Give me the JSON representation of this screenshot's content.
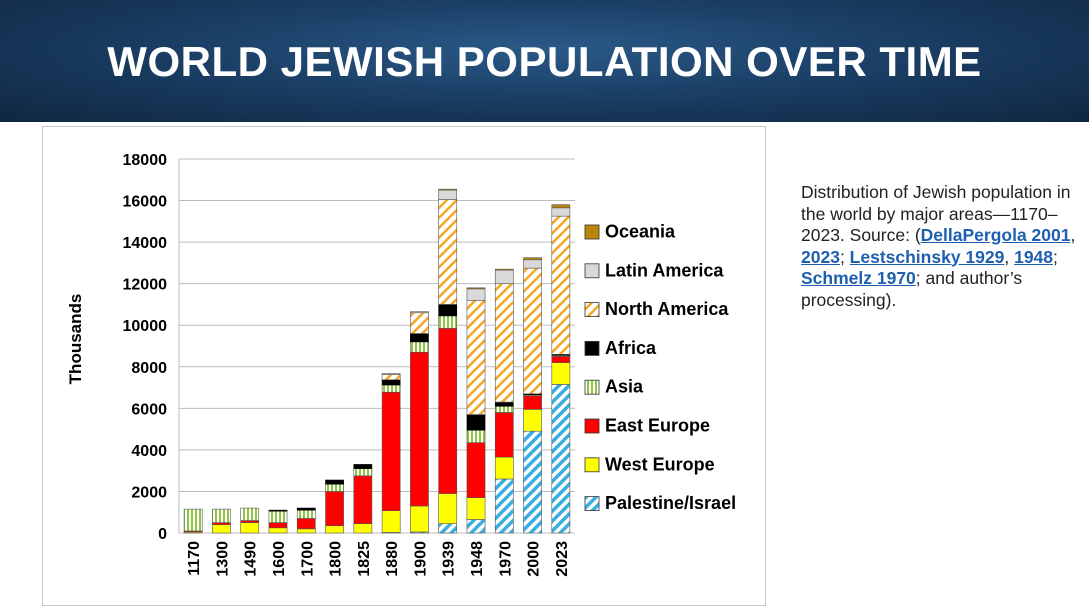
{
  "header": {
    "title": "WORLD JEWISH POPULATION OVER TIME"
  },
  "caption": {
    "line1": "Distribution of Jewish population in the world by major areas—1170–2023. Source: (",
    "link1": "DellaPergola 2001",
    "sep1": ", ",
    "link2": "2023",
    "sep2": "; ",
    "link3": "Lestschinsky 1929",
    "sep3": ", ",
    "link4": "1948",
    "sep4": "; ",
    "link5": "Schmelz 1970",
    "tail": "; and author’s processing)."
  },
  "chart_data": {
    "type": "bar",
    "stacked": true,
    "ylabel": "Thousands",
    "ylim": [
      0,
      18000
    ],
    "yticks": [
      0,
      2000,
      4000,
      6000,
      8000,
      10000,
      12000,
      14000,
      16000,
      18000
    ],
    "grid": true,
    "legend_position": "right",
    "categories": [
      "1170",
      "1300",
      "1490",
      "1600",
      "1700",
      "1800",
      "1825",
      "1880",
      "1900",
      "1939",
      "1948",
      "1970",
      "2000",
      "2023"
    ],
    "series": [
      {
        "name": "Palestine/Israel",
        "color": "#3aaee0",
        "pattern": "diag-blue",
        "values": [
          0,
          0,
          0,
          0,
          0,
          0,
          0,
          25,
          50,
          450,
          650,
          2600,
          4900,
          7150
        ]
      },
      {
        "name": "West Europe",
        "color": "#ffff00",
        "values": [
          50,
          400,
          500,
          250,
          200,
          350,
          450,
          1050,
          1250,
          1450,
          1050,
          1050,
          1050,
          1050
        ]
      },
      {
        "name": "East Europe",
        "color": "#ff0000",
        "values": [
          50,
          100,
          100,
          250,
          500,
          1650,
          2300,
          5700,
          7400,
          7950,
          2650,
          2150,
          650,
          300
        ]
      },
      {
        "name": "Asia",
        "color": "#8dc63f",
        "pattern": "stripe-green",
        "values": [
          1050,
          650,
          600,
          550,
          400,
          350,
          350,
          350,
          500,
          600,
          600,
          300,
          50,
          50
        ]
      },
      {
        "name": "Africa",
        "color": "#000000",
        "values": [
          0,
          0,
          0,
          50,
          100,
          200,
          200,
          250,
          400,
          550,
          750,
          200,
          50,
          50
        ]
      },
      {
        "name": "North America",
        "color": "#f5a623",
        "pattern": "diag-orange",
        "values": [
          0,
          0,
          0,
          0,
          0,
          0,
          0,
          250,
          1000,
          5050,
          5500,
          5700,
          6050,
          6650
        ]
      },
      {
        "name": "Latin America",
        "color": "#d9d9d9",
        "values": [
          0,
          0,
          0,
          0,
          0,
          0,
          0,
          50,
          50,
          450,
          550,
          650,
          400,
          400
        ]
      },
      {
        "name": "Oceania",
        "color": "#b8860b",
        "values": [
          0,
          0,
          0,
          0,
          0,
          0,
          0,
          0,
          0,
          50,
          50,
          50,
          100,
          150
        ]
      }
    ]
  }
}
